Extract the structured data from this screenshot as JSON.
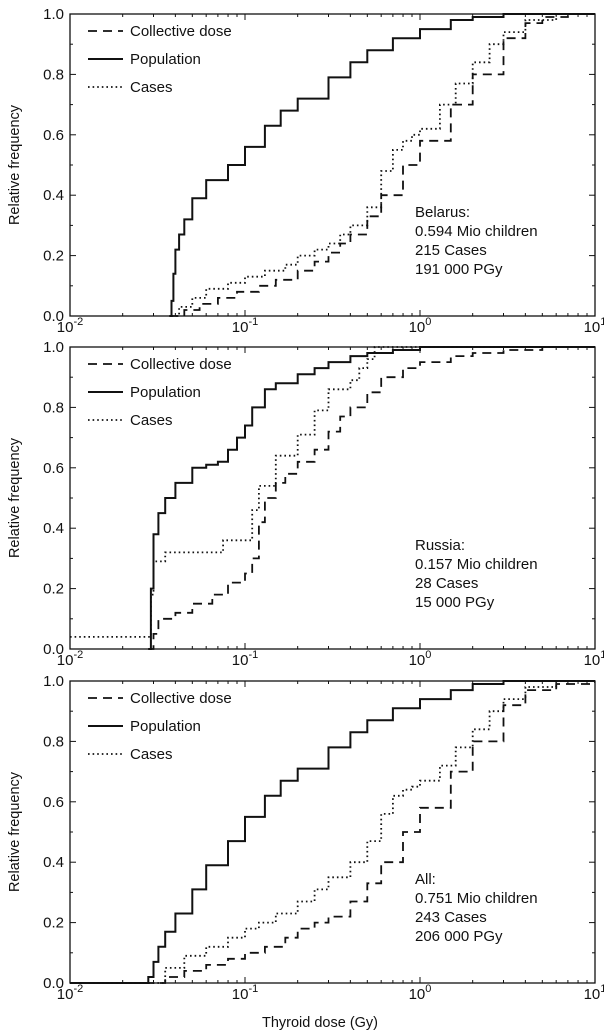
{
  "figure": {
    "xlabel": "Thyroid dose (Gy)",
    "ylabel": "Relative frequency"
  },
  "chart_data": [
    {
      "type": "line",
      "panel": "Belarus",
      "xscale": "log",
      "xlim": [
        0.01,
        10
      ],
      "ylim": [
        0,
        1
      ],
      "xticks": [
        0.01,
        0.1,
        1,
        10
      ],
      "xtick_labels": [
        {
          "base": "10",
          "exp": "-2"
        },
        {
          "base": "10",
          "exp": "-1"
        },
        {
          "base": "10",
          "exp": "0"
        },
        {
          "base": "10",
          "exp": "1"
        }
      ],
      "yticks": [
        0,
        0.2,
        0.4,
        0.6,
        0.8,
        1.0
      ],
      "ytick_labels": [
        "0.0",
        "0.2",
        "0.4",
        "0.6",
        "0.8",
        "1.0"
      ],
      "ylabel": "Relative frequency",
      "grid": false,
      "legend": "top-left",
      "annotation": [
        "Belarus:",
        "0.594 Mio children",
        "215 Cases",
        "191 000 PGy"
      ],
      "series": [
        {
          "name": "Collective dose",
          "style": "dashed",
          "x": [
            0.037,
            0.045,
            0.055,
            0.07,
            0.09,
            0.12,
            0.15,
            0.2,
            0.25,
            0.3,
            0.35,
            0.4,
            0.5,
            0.6,
            0.8,
            1.0,
            1.5,
            2.0,
            3.0,
            4.0,
            5.0,
            7.0,
            10.0
          ],
          "y": [
            0.0,
            0.02,
            0.04,
            0.06,
            0.08,
            0.1,
            0.12,
            0.15,
            0.18,
            0.21,
            0.24,
            0.27,
            0.33,
            0.4,
            0.5,
            0.58,
            0.7,
            0.8,
            0.92,
            0.97,
            0.99,
            1.0,
            1.0
          ]
        },
        {
          "name": "Population",
          "style": "solid",
          "x": [
            0.037,
            0.038,
            0.039,
            0.04,
            0.042,
            0.045,
            0.05,
            0.06,
            0.08,
            0.1,
            0.13,
            0.16,
            0.2,
            0.3,
            0.4,
            0.5,
            0.7,
            1.0,
            1.5,
            2.0,
            3.0,
            5.0,
            10.0
          ],
          "y": [
            0.0,
            0.05,
            0.14,
            0.22,
            0.27,
            0.32,
            0.39,
            0.45,
            0.5,
            0.56,
            0.63,
            0.68,
            0.72,
            0.79,
            0.84,
            0.88,
            0.92,
            0.95,
            0.98,
            0.99,
            1.0,
            1.0,
            1.0
          ]
        },
        {
          "name": "Cases",
          "style": "dotted",
          "x": [
            0.038,
            0.042,
            0.05,
            0.06,
            0.08,
            0.1,
            0.13,
            0.17,
            0.2,
            0.25,
            0.3,
            0.35,
            0.4,
            0.5,
            0.6,
            0.7,
            0.8,
            0.9,
            1.0,
            1.3,
            1.6,
            2.0,
            2.5,
            3.0,
            4.0,
            6.0,
            10.0
          ],
          "y": [
            0.0,
            0.03,
            0.06,
            0.09,
            0.11,
            0.13,
            0.15,
            0.17,
            0.2,
            0.22,
            0.24,
            0.27,
            0.3,
            0.36,
            0.48,
            0.55,
            0.58,
            0.6,
            0.62,
            0.7,
            0.77,
            0.84,
            0.9,
            0.94,
            0.98,
            1.0,
            1.0
          ]
        }
      ]
    },
    {
      "type": "line",
      "panel": "Russia",
      "xscale": "log",
      "xlim": [
        0.01,
        10
      ],
      "ylim": [
        0,
        1
      ],
      "xticks": [
        0.01,
        0.1,
        1,
        10
      ],
      "xtick_labels": [
        {
          "base": "10",
          "exp": "-2"
        },
        {
          "base": "10",
          "exp": "-1"
        },
        {
          "base": "10",
          "exp": "0"
        },
        {
          "base": "10",
          "exp": "1"
        }
      ],
      "yticks": [
        0,
        0.2,
        0.4,
        0.6,
        0.8,
        1.0
      ],
      "ytick_labels": [
        "0.0",
        "0.2",
        "0.4",
        "0.6",
        "0.8",
        "1.0"
      ],
      "ylabel": "Relative frequency",
      "grid": false,
      "legend": "top-left",
      "annotation": [
        "Russia:",
        "0.157 Mio children",
        "28 Cases",
        "15 000 PGy"
      ],
      "series": [
        {
          "name": "Collective dose",
          "style": "dashed",
          "x": [
            0.028,
            0.03,
            0.032,
            0.04,
            0.05,
            0.065,
            0.08,
            0.1,
            0.11,
            0.12,
            0.13,
            0.15,
            0.17,
            0.2,
            0.25,
            0.3,
            0.35,
            0.4,
            0.5,
            0.6,
            0.8,
            1.0,
            1.5,
            2.0,
            3.0,
            5.0,
            10.0
          ],
          "y": [
            0.0,
            0.05,
            0.1,
            0.12,
            0.15,
            0.18,
            0.22,
            0.25,
            0.3,
            0.42,
            0.5,
            0.55,
            0.58,
            0.62,
            0.66,
            0.72,
            0.77,
            0.8,
            0.85,
            0.9,
            0.93,
            0.95,
            0.97,
            0.98,
            0.99,
            1.0,
            1.0
          ]
        },
        {
          "name": "Population",
          "style": "solid",
          "x": [
            0.028,
            0.029,
            0.03,
            0.032,
            0.035,
            0.04,
            0.05,
            0.06,
            0.07,
            0.08,
            0.09,
            0.1,
            0.11,
            0.13,
            0.15,
            0.2,
            0.25,
            0.3,
            0.4,
            0.5,
            0.7,
            1.0,
            2.0,
            10.0
          ],
          "y": [
            0.0,
            0.2,
            0.38,
            0.45,
            0.5,
            0.55,
            0.6,
            0.61,
            0.62,
            0.66,
            0.7,
            0.74,
            0.8,
            0.86,
            0.88,
            0.91,
            0.93,
            0.95,
            0.97,
            0.98,
            0.99,
            1.0,
            1.0,
            1.0
          ]
        },
        {
          "name": "Cases",
          "style": "dotted",
          "x": [
            0.01,
            0.028,
            0.029,
            0.03,
            0.035,
            0.05,
            0.075,
            0.1,
            0.11,
            0.12,
            0.15,
            0.2,
            0.25,
            0.3,
            0.4,
            0.45,
            0.5,
            0.55,
            1.0,
            10.0
          ],
          "y": [
            0.04,
            0.04,
            0.18,
            0.29,
            0.32,
            0.32,
            0.36,
            0.36,
            0.46,
            0.54,
            0.64,
            0.71,
            0.79,
            0.86,
            0.89,
            0.93,
            0.96,
            1.0,
            1.0,
            1.0
          ]
        }
      ]
    },
    {
      "type": "line",
      "panel": "All",
      "xscale": "log",
      "xlim": [
        0.01,
        10
      ],
      "ylim": [
        0,
        1
      ],
      "xticks": [
        0.01,
        0.1,
        1,
        10
      ],
      "xtick_labels": [
        {
          "base": "10",
          "exp": "-2"
        },
        {
          "base": "10",
          "exp": "-1"
        },
        {
          "base": "10",
          "exp": "0"
        },
        {
          "base": "10",
          "exp": "1"
        }
      ],
      "yticks": [
        0,
        0.2,
        0.4,
        0.6,
        0.8,
        1.0
      ],
      "ytick_labels": [
        "0.0",
        "0.2",
        "0.4",
        "0.6",
        "0.8",
        "1.0"
      ],
      "ylabel": "Relative frequency",
      "grid": false,
      "legend": "top-left",
      "annotation": [
        "All:",
        "0.751 Mio children",
        "243 Cases",
        "206 000 PGy"
      ],
      "series": [
        {
          "name": "Collective dose",
          "style": "dashed",
          "x": [
            0.01,
            0.028,
            0.035,
            0.045,
            0.06,
            0.08,
            0.1,
            0.13,
            0.17,
            0.2,
            0.25,
            0.3,
            0.4,
            0.5,
            0.6,
            0.8,
            1.0,
            1.5,
            2.0,
            3.0,
            4.0,
            6.0,
            10.0
          ],
          "y": [
            0.0,
            0.0,
            0.02,
            0.04,
            0.06,
            0.08,
            0.1,
            0.12,
            0.15,
            0.18,
            0.2,
            0.22,
            0.27,
            0.33,
            0.4,
            0.5,
            0.58,
            0.7,
            0.8,
            0.92,
            0.97,
            0.99,
            1.0
          ]
        },
        {
          "name": "Population",
          "style": "solid",
          "x": [
            0.01,
            0.025,
            0.028,
            0.03,
            0.032,
            0.035,
            0.04,
            0.05,
            0.06,
            0.08,
            0.1,
            0.13,
            0.16,
            0.2,
            0.3,
            0.4,
            0.5,
            0.7,
            1.0,
            1.5,
            2.0,
            3.0,
            5.0,
            10.0
          ],
          "y": [
            0.0,
            0.0,
            0.02,
            0.07,
            0.12,
            0.17,
            0.23,
            0.31,
            0.39,
            0.47,
            0.55,
            0.62,
            0.67,
            0.71,
            0.78,
            0.83,
            0.87,
            0.91,
            0.94,
            0.97,
            0.99,
            1.0,
            1.0,
            1.0
          ]
        },
        {
          "name": "Cases",
          "style": "dotted",
          "x": [
            0.01,
            0.028,
            0.035,
            0.045,
            0.06,
            0.08,
            0.1,
            0.12,
            0.15,
            0.2,
            0.25,
            0.3,
            0.4,
            0.5,
            0.6,
            0.7,
            0.8,
            0.9,
            1.0,
            1.3,
            1.6,
            2.0,
            2.5,
            3.0,
            4.0,
            6.0,
            10.0
          ],
          "y": [
            0.0,
            0.0,
            0.05,
            0.09,
            0.12,
            0.15,
            0.18,
            0.2,
            0.23,
            0.27,
            0.31,
            0.35,
            0.4,
            0.47,
            0.56,
            0.62,
            0.64,
            0.65,
            0.67,
            0.72,
            0.78,
            0.84,
            0.9,
            0.94,
            0.98,
            1.0,
            1.0
          ]
        }
      ]
    }
  ]
}
